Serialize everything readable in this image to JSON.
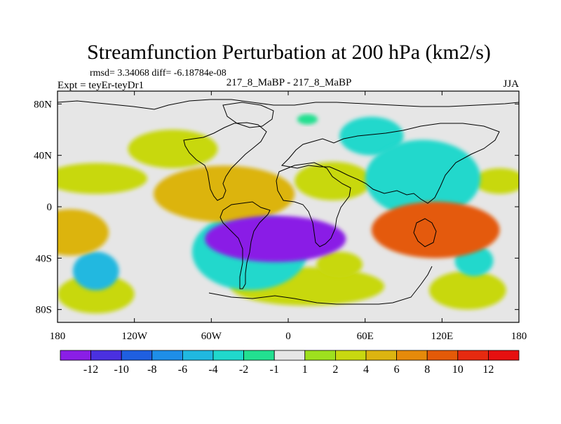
{
  "chart_data": {
    "type": "heatmap",
    "title": "Streamfunction Perturbation at 200 hPa (km2/s)",
    "left_subtitle_1": "rmsd= 3.34068 diff= -6.18784e-08",
    "left_subtitle_2": "Expt = teyEr-teyDr1",
    "center_subtitle": "217_8_MaBP - 217_8_MaBP",
    "right_subtitle": "JJA",
    "x_ticks": [
      {
        "value": -180,
        "label": "180"
      },
      {
        "value": -120,
        "label": "120W"
      },
      {
        "value": -60,
        "label": "60W"
      },
      {
        "value": 0,
        "label": "0"
      },
      {
        "value": 60,
        "label": "60E"
      },
      {
        "value": 120,
        "label": "120E"
      },
      {
        "value": 180,
        "label": "180"
      }
    ],
    "y_ticks": [
      {
        "value": 80,
        "label": "80N"
      },
      {
        "value": 40,
        "label": "40N"
      },
      {
        "value": 0,
        "label": "0"
      },
      {
        "value": -40,
        "label": "40S"
      },
      {
        "value": -80,
        "label": "80S"
      }
    ],
    "xlim": [
      -180,
      180
    ],
    "ylim": [
      -90,
      90
    ],
    "grid": false,
    "colorbar": {
      "boundaries": [
        -14,
        -12,
        -10,
        -8,
        -6,
        -4,
        -2,
        -1,
        1,
        2,
        4,
        6,
        8,
        10,
        12,
        14
      ],
      "labels": [
        "-12",
        "-10",
        "-8",
        "-6",
        "-4",
        "-2",
        "-1",
        "1",
        "2",
        "4",
        "6",
        "8",
        "10",
        "12"
      ],
      "colors": [
        "#8a1ee6",
        "#4a30e0",
        "#1f5fe0",
        "#1e8ee8",
        "#20b8e0",
        "#20d8cc",
        "#22e090",
        "#e6e6e6",
        "#9ee01e",
        "#c8d810",
        "#dcb410",
        "#e68a0a",
        "#e45a08",
        "#e62a10",
        "#e61010"
      ]
    },
    "field_blobs": [
      {
        "lon": -10,
        "lat": -25,
        "rlon": 55,
        "rlat": 18,
        "value": -13
      },
      {
        "lon": -10,
        "lat": -27,
        "rlon": 40,
        "rlat": 12,
        "value": -4
      },
      {
        "lon": -30,
        "lat": -35,
        "rlon": 45,
        "rlat": 30,
        "value": -3
      },
      {
        "lon": -150,
        "lat": -50,
        "rlon": 18,
        "rlat": 15,
        "value": -5
      },
      {
        "lon": 145,
        "lat": -42,
        "rlon": 15,
        "rlat": 12,
        "value": -4
      },
      {
        "lon": 105,
        "lat": 22,
        "rlon": 45,
        "rlat": 30,
        "value": -4
      },
      {
        "lon": 65,
        "lat": 55,
        "rlon": 25,
        "rlat": 15,
        "value": -3
      },
      {
        "lon": 115,
        "lat": -18,
        "rlon": 50,
        "rlat": 22,
        "value": 8
      },
      {
        "lon": -170,
        "lat": -20,
        "rlon": 30,
        "rlat": 18,
        "value": 5
      },
      {
        "lon": -50,
        "lat": 10,
        "rlon": 55,
        "rlat": 22,
        "value": 5
      },
      {
        "lon": 35,
        "lat": 20,
        "rlon": 30,
        "rlat": 15,
        "value": 3
      },
      {
        "lon": -90,
        "lat": 45,
        "rlon": 35,
        "rlat": 15,
        "value": 3
      },
      {
        "lon": -150,
        "lat": 22,
        "rlon": 40,
        "rlat": 12,
        "value": 2
      },
      {
        "lon": 165,
        "lat": 20,
        "rlon": 20,
        "rlat": 10,
        "value": 2
      },
      {
        "lon": 15,
        "lat": -62,
        "rlon": 60,
        "rlat": 15,
        "value": 2
      },
      {
        "lon": -150,
        "lat": -68,
        "rlon": 30,
        "rlat": 15,
        "value": 2
      },
      {
        "lon": 140,
        "lat": -65,
        "rlon": 30,
        "rlat": 15,
        "value": 2
      },
      {
        "lon": 40,
        "lat": -45,
        "rlon": 18,
        "rlat": 10,
        "value": 3
      },
      {
        "lon": 15,
        "lat": 68,
        "rlon": 8,
        "rlat": 4,
        "value": -2
      }
    ]
  }
}
